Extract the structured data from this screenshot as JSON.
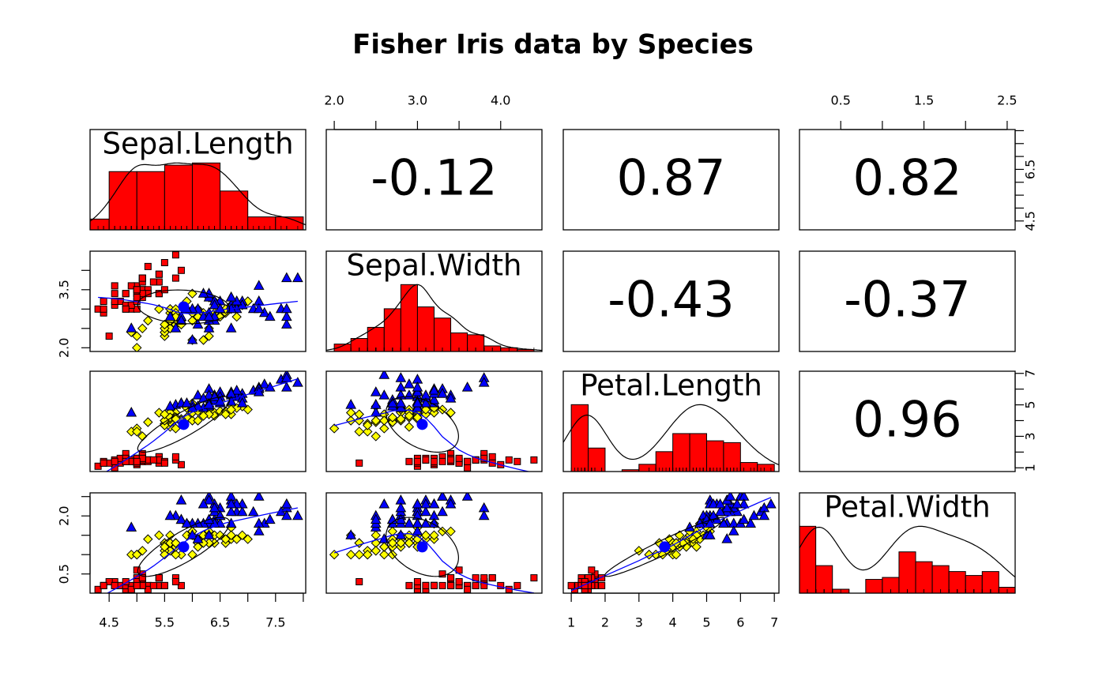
{
  "chart_data": {
    "type": "scatter_matrix",
    "title": "Fisher Iris data by Species",
    "variables": [
      {
        "name": "Sepal.Length",
        "lim": [
          4.156,
          8.044
        ],
        "bins": [
          4,
          4.5,
          5,
          5.5,
          6,
          6.5,
          7,
          7.5,
          8
        ],
        "counts": [
          5,
          27,
          27,
          30,
          31,
          18,
          6,
          6
        ],
        "count_lim": [
          0,
          46.5
        ]
      },
      {
        "name": "Sepal.Width",
        "lim": [
          1.904,
          4.496
        ],
        "bins": [
          2,
          2.2,
          2.4,
          2.6,
          2.8,
          3,
          3.2,
          3.4,
          3.6,
          3.8,
          4,
          4.2,
          4.4
        ],
        "counts": [
          4,
          7,
          13,
          23,
          36,
          24,
          18,
          10,
          9,
          3,
          2,
          1
        ],
        "count_lim": [
          0,
          54
        ]
      },
      {
        "name": "Petal.Length",
        "lim": [
          0.764,
          7.136
        ],
        "bins": [
          1,
          1.5,
          2,
          2.5,
          3,
          3.5,
          4,
          4.5,
          5,
          5.5,
          6,
          6.5,
          7
        ],
        "counts": [
          37,
          13,
          0,
          1,
          4,
          11,
          21,
          21,
          17,
          16,
          5,
          4
        ],
        "count_lim": [
          0,
          55.5
        ]
      },
      {
        "name": "Petal.Width",
        "lim": [
          0.004,
          2.596
        ],
        "bins": [
          0,
          0.2,
          0.4,
          0.6,
          0.8,
          1,
          1.2,
          1.4,
          1.6,
          1.8,
          2,
          2.2,
          2.4,
          2.6
        ],
        "counts": [
          34,
          14,
          2,
          0,
          7,
          8,
          21,
          16,
          14,
          11,
          9,
          11,
          3
        ],
        "count_lim": [
          0,
          51
        ]
      }
    ],
    "correlations": [
      {
        "pair": [
          0,
          1
        ],
        "value": -0.12
      },
      {
        "pair": [
          0,
          2
        ],
        "value": 0.87
      },
      {
        "pair": [
          0,
          3
        ],
        "value": 0.82
      },
      {
        "pair": [
          1,
          2
        ],
        "value": -0.43
      },
      {
        "pair": [
          1,
          3
        ],
        "value": -0.37
      },
      {
        "pair": [
          2,
          3
        ],
        "value": 0.96
      }
    ],
    "axes": [
      {
        "side": "top",
        "variable": 1,
        "ticks": [
          {
            "value": 2,
            "label": "2.0"
          },
          {
            "value": 3,
            "label": "3.0"
          },
          {
            "value": 4,
            "label": "4.0"
          }
        ],
        "minor_ticks": [
          2.5,
          3.5
        ]
      },
      {
        "side": "top",
        "variable": 3,
        "ticks": [
          0.5,
          1.5,
          2.5
        ],
        "minor_ticks": [
          1,
          2
        ]
      },
      {
        "side": "right",
        "variable": 0,
        "ticks": [
          4.5,
          6.5
        ],
        "minor_ticks": [
          5,
          5.5,
          6,
          7,
          7.5,
          8
        ]
      },
      {
        "side": "right",
        "variable": 2,
        "ticks": [
          1,
          3,
          5,
          7
        ],
        "minor_ticks": [
          2,
          4,
          6
        ]
      },
      {
        "side": "left",
        "variable": 1,
        "ticks": [
          {
            "value": 2,
            "label": "2.0"
          },
          3.5
        ],
        "minor_ticks": [
          2.5,
          3,
          4
        ]
      },
      {
        "side": "left",
        "variable": 3,
        "ticks": [
          0.5,
          {
            "value": 2,
            "label": "2.0"
          }
        ],
        "minor_ticks": [
          1,
          1.5,
          2.5
        ]
      },
      {
        "side": "bottom",
        "variable": 0,
        "ticks": [
          4.5,
          5.5,
          6.5,
          7.5
        ],
        "minor_ticks": [
          5,
          6,
          7,
          8
        ]
      },
      {
        "side": "bottom",
        "variable": 2,
        "ticks": [
          1,
          2,
          3,
          4,
          5,
          6,
          7
        ],
        "minor_ticks": []
      }
    ],
    "groups": [
      {
        "color": "#ff0000",
        "marker": "square",
        "values": [
          [
            5.1,
            4.9,
            4.7,
            4.6,
            5.0,
            5.4,
            4.6,
            5.0,
            4.4,
            4.9,
            5.4,
            4.8,
            4.8,
            4.3,
            5.8,
            5.7,
            5.4,
            5.1,
            5.7,
            5.1,
            5.4,
            5.1,
            4.6,
            5.1,
            4.8,
            5.0,
            5.0,
            5.2,
            5.2,
            4.7,
            4.8,
            5.4,
            5.2,
            5.5,
            4.9,
            5.0,
            5.5,
            4.9,
            4.4,
            5.1,
            5.0,
            4.5,
            4.4,
            5.0,
            5.1,
            4.8,
            5.1,
            4.6,
            5.3,
            5.0
          ],
          [
            3.5,
            3.0,
            3.2,
            3.1,
            3.6,
            3.9,
            3.4,
            3.4,
            2.9,
            3.1,
            3.7,
            3.4,
            3.0,
            3.0,
            4.0,
            4.4,
            3.9,
            3.5,
            3.8,
            3.8,
            3.4,
            3.7,
            3.6,
            3.3,
            3.4,
            3.0,
            3.4,
            3.5,
            3.4,
            3.2,
            3.1,
            3.4,
            4.1,
            4.2,
            3.1,
            3.2,
            3.5,
            3.6,
            3.0,
            3.4,
            3.5,
            2.3,
            3.2,
            3.5,
            3.8,
            3.0,
            3.8,
            3.2,
            3.7,
            3.3
          ],
          [
            1.4,
            1.4,
            1.3,
            1.5,
            1.4,
            1.7,
            1.4,
            1.5,
            1.4,
            1.5,
            1.5,
            1.6,
            1.4,
            1.1,
            1.2,
            1.5,
            1.3,
            1.4,
            1.7,
            1.5,
            1.7,
            1.5,
            1.0,
            1.7,
            1.9,
            1.6,
            1.6,
            1.5,
            1.4,
            1.6,
            1.6,
            1.5,
            1.5,
            1.4,
            1.5,
            1.2,
            1.3,
            1.4,
            1.3,
            1.5,
            1.3,
            1.3,
            1.3,
            1.6,
            1.9,
            1.4,
            1.6,
            1.4,
            1.5,
            1.4
          ],
          [
            0.2,
            0.2,
            0.2,
            0.2,
            0.2,
            0.4,
            0.3,
            0.2,
            0.2,
            0.1,
            0.2,
            0.2,
            0.1,
            0.1,
            0.2,
            0.4,
            0.4,
            0.3,
            0.3,
            0.3,
            0.2,
            0.4,
            0.2,
            0.5,
            0.2,
            0.2,
            0.4,
            0.2,
            0.2,
            0.2,
            0.2,
            0.4,
            0.1,
            0.2,
            0.2,
            0.2,
            0.2,
            0.1,
            0.2,
            0.2,
            0.3,
            0.3,
            0.2,
            0.6,
            0.4,
            0.3,
            0.2,
            0.2,
            0.2,
            0.2
          ]
        ]
      },
      {
        "color": "#ffff00",
        "marker": "diamond",
        "values": [
          [
            7.0,
            6.4,
            6.9,
            5.5,
            6.5,
            5.7,
            6.3,
            4.9,
            6.6,
            5.2,
            5.0,
            5.9,
            6.0,
            6.1,
            5.6,
            6.7,
            5.6,
            5.8,
            6.2,
            5.6,
            5.9,
            6.1,
            6.3,
            6.1,
            6.4,
            6.6,
            6.8,
            6.7,
            6.0,
            5.7,
            5.5,
            5.5,
            5.8,
            6.0,
            5.4,
            6.0,
            6.7,
            6.3,
            5.6,
            5.5,
            5.5,
            6.1,
            5.8,
            5.0,
            5.6,
            5.7,
            5.7,
            6.2,
            5.1,
            5.7
          ],
          [
            3.2,
            3.2,
            3.1,
            2.3,
            2.8,
            2.8,
            3.3,
            2.4,
            2.9,
            2.7,
            2.0,
            3.0,
            2.2,
            2.9,
            2.9,
            3.1,
            3.0,
            2.7,
            2.2,
            2.5,
            3.2,
            2.8,
            2.5,
            2.8,
            2.9,
            3.0,
            2.8,
            3.0,
            2.9,
            2.6,
            2.4,
            2.4,
            2.7,
            2.7,
            3.0,
            3.4,
            3.1,
            2.3,
            3.0,
            2.5,
            2.6,
            3.0,
            2.6,
            2.3,
            2.7,
            3.0,
            2.9,
            2.9,
            2.5,
            2.8
          ],
          [
            4.7,
            4.5,
            4.9,
            4.0,
            4.6,
            4.5,
            4.7,
            3.3,
            4.6,
            3.9,
            3.5,
            4.2,
            4.0,
            4.7,
            3.6,
            4.4,
            4.5,
            4.1,
            4.5,
            3.9,
            4.8,
            4.0,
            4.9,
            4.7,
            4.3,
            4.4,
            4.8,
            5.0,
            4.5,
            3.5,
            3.8,
            3.7,
            3.9,
            5.1,
            4.5,
            4.5,
            4.7,
            4.4,
            4.1,
            4.0,
            4.4,
            4.6,
            4.0,
            3.3,
            4.2,
            4.2,
            4.2,
            4.3,
            3.0,
            4.1
          ],
          [
            1.4,
            1.5,
            1.5,
            1.3,
            1.5,
            1.3,
            1.6,
            1.0,
            1.3,
            1.4,
            1.0,
            1.5,
            1.0,
            1.4,
            1.3,
            1.4,
            1.5,
            1.0,
            1.5,
            1.1,
            1.8,
            1.3,
            1.5,
            1.2,
            1.3,
            1.4,
            1.4,
            1.7,
            1.5,
            1.0,
            1.1,
            1.0,
            1.2,
            1.6,
            1.5,
            1.6,
            1.5,
            1.3,
            1.3,
            1.3,
            1.2,
            1.4,
            1.2,
            1.0,
            1.3,
            1.2,
            1.3,
            1.3,
            1.1,
            1.3
          ]
        ]
      },
      {
        "color": "#0000ff",
        "marker": "triangle",
        "values": [
          [
            6.3,
            5.8,
            7.1,
            6.3,
            6.5,
            7.6,
            4.9,
            7.3,
            6.7,
            7.2,
            6.5,
            6.4,
            6.8,
            5.7,
            5.8,
            6.4,
            6.5,
            7.7,
            7.7,
            6.0,
            6.9,
            5.6,
            7.7,
            6.3,
            6.7,
            7.2,
            6.2,
            6.1,
            6.4,
            7.2,
            7.4,
            7.9,
            6.4,
            6.3,
            6.1,
            7.7,
            6.3,
            6.4,
            6.0,
            6.9,
            6.7,
            6.9,
            5.8,
            6.8,
            6.7,
            6.7,
            6.3,
            6.5,
            6.2,
            5.9
          ],
          [
            3.3,
            2.7,
            3.0,
            2.9,
            3.0,
            3.0,
            2.5,
            2.9,
            2.5,
            3.6,
            3.2,
            2.7,
            3.0,
            2.5,
            2.8,
            3.2,
            3.0,
            3.8,
            2.6,
            2.2,
            3.2,
            2.8,
            2.8,
            2.7,
            3.3,
            3.2,
            2.8,
            3.0,
            2.8,
            3.0,
            2.8,
            3.8,
            2.8,
            2.8,
            2.6,
            3.0,
            3.4,
            3.1,
            3.0,
            3.1,
            3.1,
            3.1,
            2.7,
            3.2,
            3.3,
            3.0,
            2.5,
            3.0,
            3.4,
            3.0
          ],
          [
            6.0,
            5.1,
            5.9,
            5.6,
            5.8,
            6.6,
            4.5,
            6.3,
            5.8,
            6.1,
            5.1,
            5.3,
            5.5,
            5.0,
            5.1,
            5.3,
            5.5,
            6.7,
            6.9,
            5.0,
            5.7,
            4.9,
            6.7,
            4.9,
            5.7,
            6.0,
            4.8,
            4.9,
            5.6,
            5.8,
            6.1,
            6.4,
            5.6,
            5.1,
            5.6,
            6.1,
            5.6,
            5.5,
            4.8,
            5.4,
            5.6,
            5.1,
            5.1,
            5.9,
            5.7,
            5.2,
            5.0,
            5.2,
            5.4,
            5.1
          ],
          [
            2.5,
            1.9,
            2.1,
            1.8,
            2.2,
            2.1,
            1.7,
            1.8,
            1.8,
            2.5,
            2.0,
            1.9,
            2.1,
            2.0,
            2.4,
            2.3,
            1.8,
            2.2,
            2.3,
            1.5,
            2.3,
            2.0,
            2.0,
            1.8,
            2.1,
            1.8,
            1.8,
            1.8,
            2.1,
            1.6,
            1.9,
            2.0,
            2.2,
            1.5,
            1.4,
            2.3,
            2.4,
            1.8,
            1.8,
            2.1,
            2.4,
            2.3,
            1.9,
            2.3,
            2.5,
            2.3,
            1.9,
            2.0,
            2.3,
            1.8
          ]
        ]
      }
    ],
    "hist_color": "#ff0000",
    "smooth_color": "#0000ff"
  }
}
